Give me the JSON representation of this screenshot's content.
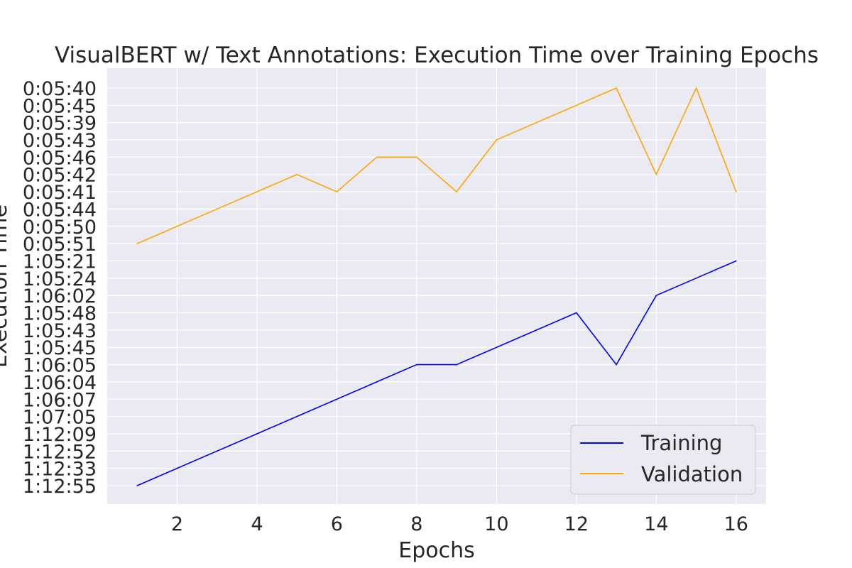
{
  "chart_data": {
    "type": "line",
    "title": "VisualBERT w/ Text Annotations: Execution Time over Training Epochs",
    "xlabel": "Epochs",
    "ylabel": "Execution Time",
    "x_ticks": [
      "2",
      "4",
      "6",
      "8",
      "10",
      "12",
      "14",
      "16"
    ],
    "xlim": [
      0.25,
      16.75
    ],
    "y_categories": [
      "1:12:55",
      "1:12:33",
      "1:12:52",
      "1:12:09",
      "1:07:05",
      "1:06:07",
      "1:06:04",
      "1:06:05",
      "1:05:45",
      "1:05:43",
      "1:05:48",
      "1:06:02",
      "1:05:24",
      "1:05:21",
      "0:05:51",
      "0:05:50",
      "0:05:44",
      "0:05:41",
      "0:05:42",
      "0:05:46",
      "0:05:43",
      "0:05:39",
      "0:05:45",
      "0:05:40"
    ],
    "x": [
      1,
      2,
      3,
      4,
      5,
      6,
      7,
      8,
      9,
      10,
      11,
      12,
      13,
      14,
      15,
      16
    ],
    "series": [
      {
        "name": "Training",
        "color": "#0000ff",
        "values": [
          "1:12:55",
          "1:12:33",
          "1:12:52",
          "1:12:09",
          "1:07:05",
          "1:06:07",
          "1:06:04",
          "1:06:05",
          "1:06:05",
          "1:05:45",
          "1:05:43",
          "1:05:48",
          "1:06:05",
          "1:06:02",
          "1:05:24",
          "1:05:21"
        ]
      },
      {
        "name": "Validation",
        "color": "#ffa500",
        "values": [
          "0:05:51",
          "0:05:50",
          "0:05:44",
          "0:05:41",
          "0:05:42",
          "0:05:41",
          "0:05:46",
          "0:05:46",
          "0:05:41",
          "0:05:43",
          "0:05:39",
          "0:05:45",
          "0:05:40",
          "0:05:42",
          "0:05:40",
          "0:05:41"
        ]
      }
    ],
    "grid": true,
    "legend_position": "bottom-right",
    "background_color": "#eaeaf2",
    "grid_color": "#ffffff"
  }
}
